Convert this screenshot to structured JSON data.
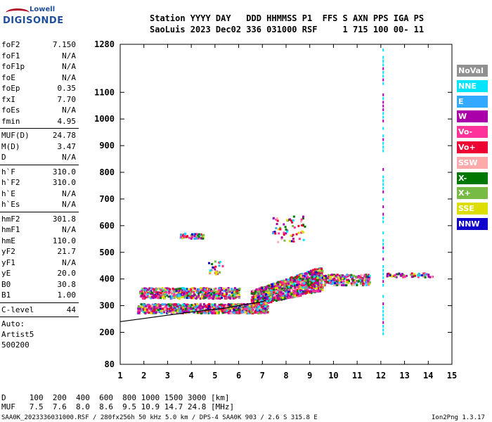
{
  "logo": {
    "line1": "Lowell",
    "line2": "DIGISONDE"
  },
  "header": {
    "row1": "Station YYYY DAY   DDD HHMMSS P1  FFS S AXN PPS IGA PS",
    "row2": "SaoLuis 2023 Dec02 336 031000 RSF     1 715 100 00- 11"
  },
  "params": {
    "group1": [
      {
        "k": "foF2",
        "v": "7.150"
      },
      {
        "k": "foF1",
        "v": "N/A"
      },
      {
        "k": "foF1p",
        "v": "N/A"
      },
      {
        "k": "foE",
        "v": "N/A"
      },
      {
        "k": "foEp",
        "v": "0.35"
      },
      {
        "k": "fxI",
        "v": "7.70"
      },
      {
        "k": "foEs",
        "v": "N/A"
      },
      {
        "k": "fmin",
        "v": "4.95"
      }
    ],
    "group2": [
      {
        "k": "MUF(D)",
        "v": "24.78"
      },
      {
        "k": "M(D)",
        "v": "3.47"
      },
      {
        "k": "D",
        "v": "N/A"
      }
    ],
    "group3": [
      {
        "k": "h`F",
        "v": "310.0"
      },
      {
        "k": "h`F2",
        "v": "310.0"
      },
      {
        "k": "h`E",
        "v": "N/A"
      },
      {
        "k": "h`Es",
        "v": "N/A"
      }
    ],
    "group4": [
      {
        "k": "hmF2",
        "v": "301.8"
      },
      {
        "k": "hmF1",
        "v": "N/A"
      },
      {
        "k": "hmE",
        "v": "110.0"
      },
      {
        "k": "yF2",
        "v": "21.7"
      },
      {
        "k": "yF1",
        "v": "N/A"
      },
      {
        "k": "yE",
        "v": "20.0"
      },
      {
        "k": "B0",
        "v": "30.8"
      },
      {
        "k": "B1",
        "v": "1.00"
      }
    ],
    "clevel": {
      "k": "C-level",
      "v": "44"
    },
    "notes": [
      "Auto:",
      "Artist5",
      "500200"
    ]
  },
  "legend": [
    {
      "label": "NoVal",
      "color": "#909090"
    },
    {
      "label": "NNE",
      "color": "#00e5ff"
    },
    {
      "label": "E",
      "color": "#33aaff"
    },
    {
      "label": "W",
      "color": "#aa00aa"
    },
    {
      "label": "Vo-",
      "color": "#ff3399"
    },
    {
      "label": "Vo+",
      "color": "#ee0033"
    },
    {
      "label": "SSW",
      "color": "#ffaaaa"
    },
    {
      "label": "X-",
      "color": "#007700"
    },
    {
      "label": "X+",
      "color": "#77bb44"
    },
    {
      "label": "SSE",
      "color": "#dddd00"
    },
    {
      "label": "NNW",
      "color": "#1100cc"
    }
  ],
  "footer": {
    "d_row": "D     100  200  400  600  800 1000 1500 3000 [km]",
    "muf_row": "MUF   7.5  7.6  8.0  8.6  9.5 10.9 14.7 24.8 [MHz]",
    "info": "SAA0K_2023336031000.RSF / 280fx256h 50 kHz 5.0 km / DPS-4 SAA0K 903 / 2.6 S 315.8 E",
    "version": "Ion2Png 1.3.17"
  },
  "chart_data": {
    "type": "scatter",
    "xlim": [
      1,
      15
    ],
    "ylim": [
      80,
      1280
    ],
    "x_ticks": [
      "1",
      "2",
      "3",
      "4",
      "5",
      "6",
      "7",
      "8",
      "9",
      "10",
      "11",
      "12",
      "13",
      "14",
      "15"
    ],
    "y_ticks": [
      {
        "v": 80,
        "label": "80"
      },
      {
        "v": 200,
        "label": "200"
      },
      {
        "v": 300,
        "label": "300"
      },
      {
        "v": 400,
        "label": "400"
      },
      {
        "v": 500,
        "label": "500"
      },
      {
        "v": 600,
        "label": "600"
      },
      {
        "v": 700,
        "label": "700"
      },
      {
        "v": 800,
        "label": "800"
      },
      {
        "v": 900,
        "label": "900"
      },
      {
        "v": 1000,
        "label": "1000"
      },
      {
        "v": 1100,
        "label": "1100"
      },
      {
        "v": 1280,
        "label": "1280"
      }
    ],
    "trace": {
      "x": [
        1.0,
        2.0,
        3.0,
        4.0,
        5.0,
        5.5,
        6.0,
        6.5,
        7.0,
        7.15
      ],
      "y": [
        240,
        252,
        264,
        276,
        286,
        292,
        300,
        308,
        315,
        320
      ]
    },
    "clusters": [
      {
        "x": [
          1.7,
          7.2
        ],
        "y": [
          275,
          310
        ]
      },
      {
        "x": [
          1.8,
          6.0
        ],
        "y": [
          330,
          370
        ]
      },
      {
        "x": [
          6.5,
          9.5
        ],
        "y": [
          300,
          440
        ]
      },
      {
        "x": [
          9.0,
          11.5
        ],
        "y": [
          380,
          420
        ]
      },
      {
        "x": [
          12.2,
          14.2
        ],
        "y": [
          410,
          425
        ]
      },
      {
        "x": [
          3.5,
          4.5
        ],
        "y": [
          555,
          575
        ]
      },
      {
        "x": [
          4.7,
          5.3
        ],
        "y": [
          420,
          470
        ]
      },
      {
        "x": [
          7.4,
          8.8
        ],
        "y": [
          540,
          640
        ]
      }
    ],
    "verticals": [
      {
        "x": 12.1,
        "y": [
          200,
          1270
        ]
      }
    ]
  }
}
